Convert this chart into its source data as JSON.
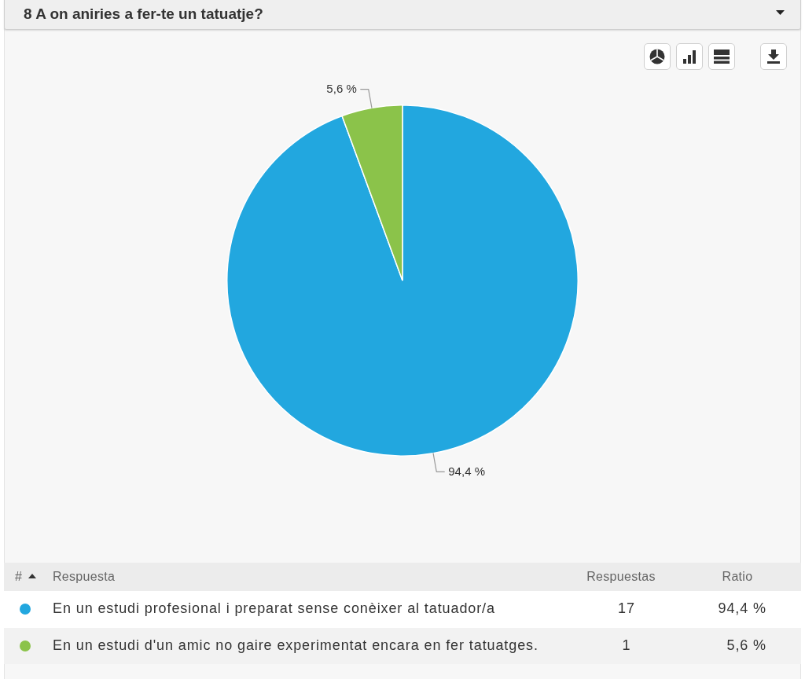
{
  "chart_data": {
    "type": "pie",
    "title": "8 A on aniries a fer-te un tatuatje?",
    "categories": [
      "En un estudi profesional i preparat sense conèixer al tatuador/a",
      "En un estudi d'un amic no gaire experimentat encara en fer tatuatges."
    ],
    "values": [
      94.4,
      5.6
    ],
    "colors": [
      "#22a7df",
      "#8bc34a"
    ],
    "value_labels": [
      "94,4 %",
      "5,6 %"
    ],
    "legend": "bottom",
    "annotations": [
      "#",
      "Respuesta",
      "Respuestas",
      "Ratio",
      "17",
      "1"
    ]
  }
}
